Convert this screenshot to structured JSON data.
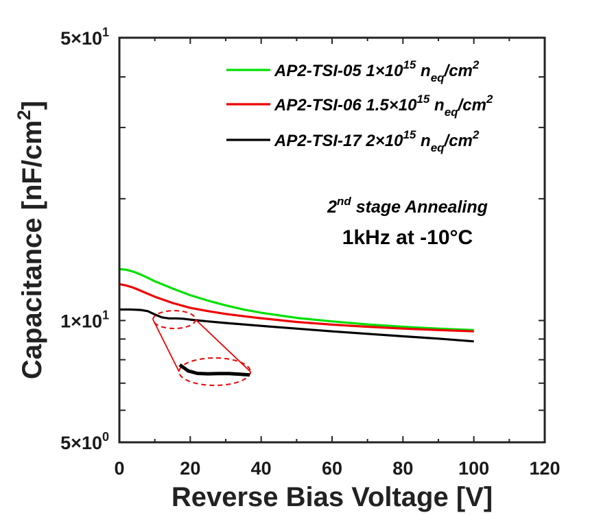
{
  "chart_data": {
    "type": "line",
    "xlabel": "Reverse Bias Voltage [V]",
    "ylabel": "Capacitance [nF/cm",
    "ylabel_superscript": "2",
    "ylabel_suffix": "]",
    "xlim": [
      0,
      120
    ],
    "ylim": [
      5,
      50
    ],
    "yscale": "log",
    "grid": false,
    "legend_position": "top-right",
    "x_ticks": [
      0,
      20,
      40,
      60,
      80,
      100,
      120
    ],
    "x_tick_labels": [
      "0",
      "20",
      "40",
      "60",
      "80",
      "100",
      "120"
    ],
    "y_ticks": [
      5,
      10,
      50
    ],
    "y_tick_labels": [
      {
        "mantissa": "5×10",
        "exponent": "0"
      },
      {
        "mantissa": "1×10",
        "exponent": "1"
      },
      {
        "mantissa": "5×10",
        "exponent": "1"
      }
    ],
    "series": [
      {
        "name": "AP2-TSI-05 1×10^15 n_eq/cm^2",
        "legend": {
          "base": "AP2-TSI-05 1×10",
          "exp": "15",
          "unit": " n",
          "unit_sub": "eq",
          "unit_tail": "/cm",
          "unit_sup": "2"
        },
        "color": "#00e000",
        "x": [
          0,
          2,
          4,
          6,
          8,
          10,
          15,
          20,
          25,
          30,
          35,
          40,
          50,
          60,
          70,
          80,
          90,
          100
        ],
        "values": [
          13.4,
          13.35,
          13.2,
          13.0,
          12.75,
          12.5,
          12.0,
          11.55,
          11.2,
          10.9,
          10.65,
          10.45,
          10.15,
          9.95,
          9.78,
          9.65,
          9.55,
          9.47
        ]
      },
      {
        "name": "AP2-TSI-06 1.5×10^15 n_eq/cm^2",
        "legend": {
          "base": "AP2-TSI-06 1.5×10",
          "exp": "15",
          "unit": " n",
          "unit_sub": "eq",
          "unit_tail": "/cm",
          "unit_sup": "2"
        },
        "color": "#ee0000",
        "x": [
          0,
          2,
          4,
          6,
          8,
          10,
          15,
          20,
          25,
          30,
          35,
          40,
          50,
          60,
          70,
          80,
          90,
          100
        ],
        "values": [
          12.3,
          12.2,
          12.05,
          11.85,
          11.65,
          11.45,
          11.05,
          10.75,
          10.55,
          10.38,
          10.25,
          10.13,
          9.92,
          9.77,
          9.65,
          9.55,
          9.47,
          9.4
        ]
      },
      {
        "name": "AP2-TSI-17 2×10^15 n_eq/cm^2",
        "legend": {
          "base": "AP2-TSI-17 2×10",
          "exp": "15",
          "unit": " n",
          "unit_sub": "eq",
          "unit_tail": "/cm",
          "unit_sup": "2"
        },
        "color": "#000000",
        "x": [
          0,
          3,
          6,
          8,
          10,
          12,
          14,
          16,
          18,
          20,
          25,
          30,
          40,
          50,
          60,
          70,
          80,
          90,
          100
        ],
        "values": [
          10.65,
          10.65,
          10.62,
          10.55,
          10.35,
          10.18,
          10.12,
          10.12,
          10.1,
          10.05,
          9.95,
          9.86,
          9.7,
          9.55,
          9.4,
          9.27,
          9.14,
          9.02,
          8.88
        ]
      }
    ],
    "annotations": {
      "stage_prefix": "2",
      "stage_sup": "nd",
      "stage_text": " stage Annealing",
      "condition": "1kHz at -10°C"
    },
    "zoom_inset": {
      "color": "#ee0000",
      "source_x_range": [
        10,
        22
      ],
      "zoomed_x": [
        0,
        0.12,
        0.25,
        0.4,
        0.55,
        0.7,
        0.85,
        1.0
      ],
      "zoomed_y": [
        0.0,
        0.55,
        0.78,
        0.82,
        0.8,
        0.8,
        0.85,
        0.92
      ]
    }
  }
}
